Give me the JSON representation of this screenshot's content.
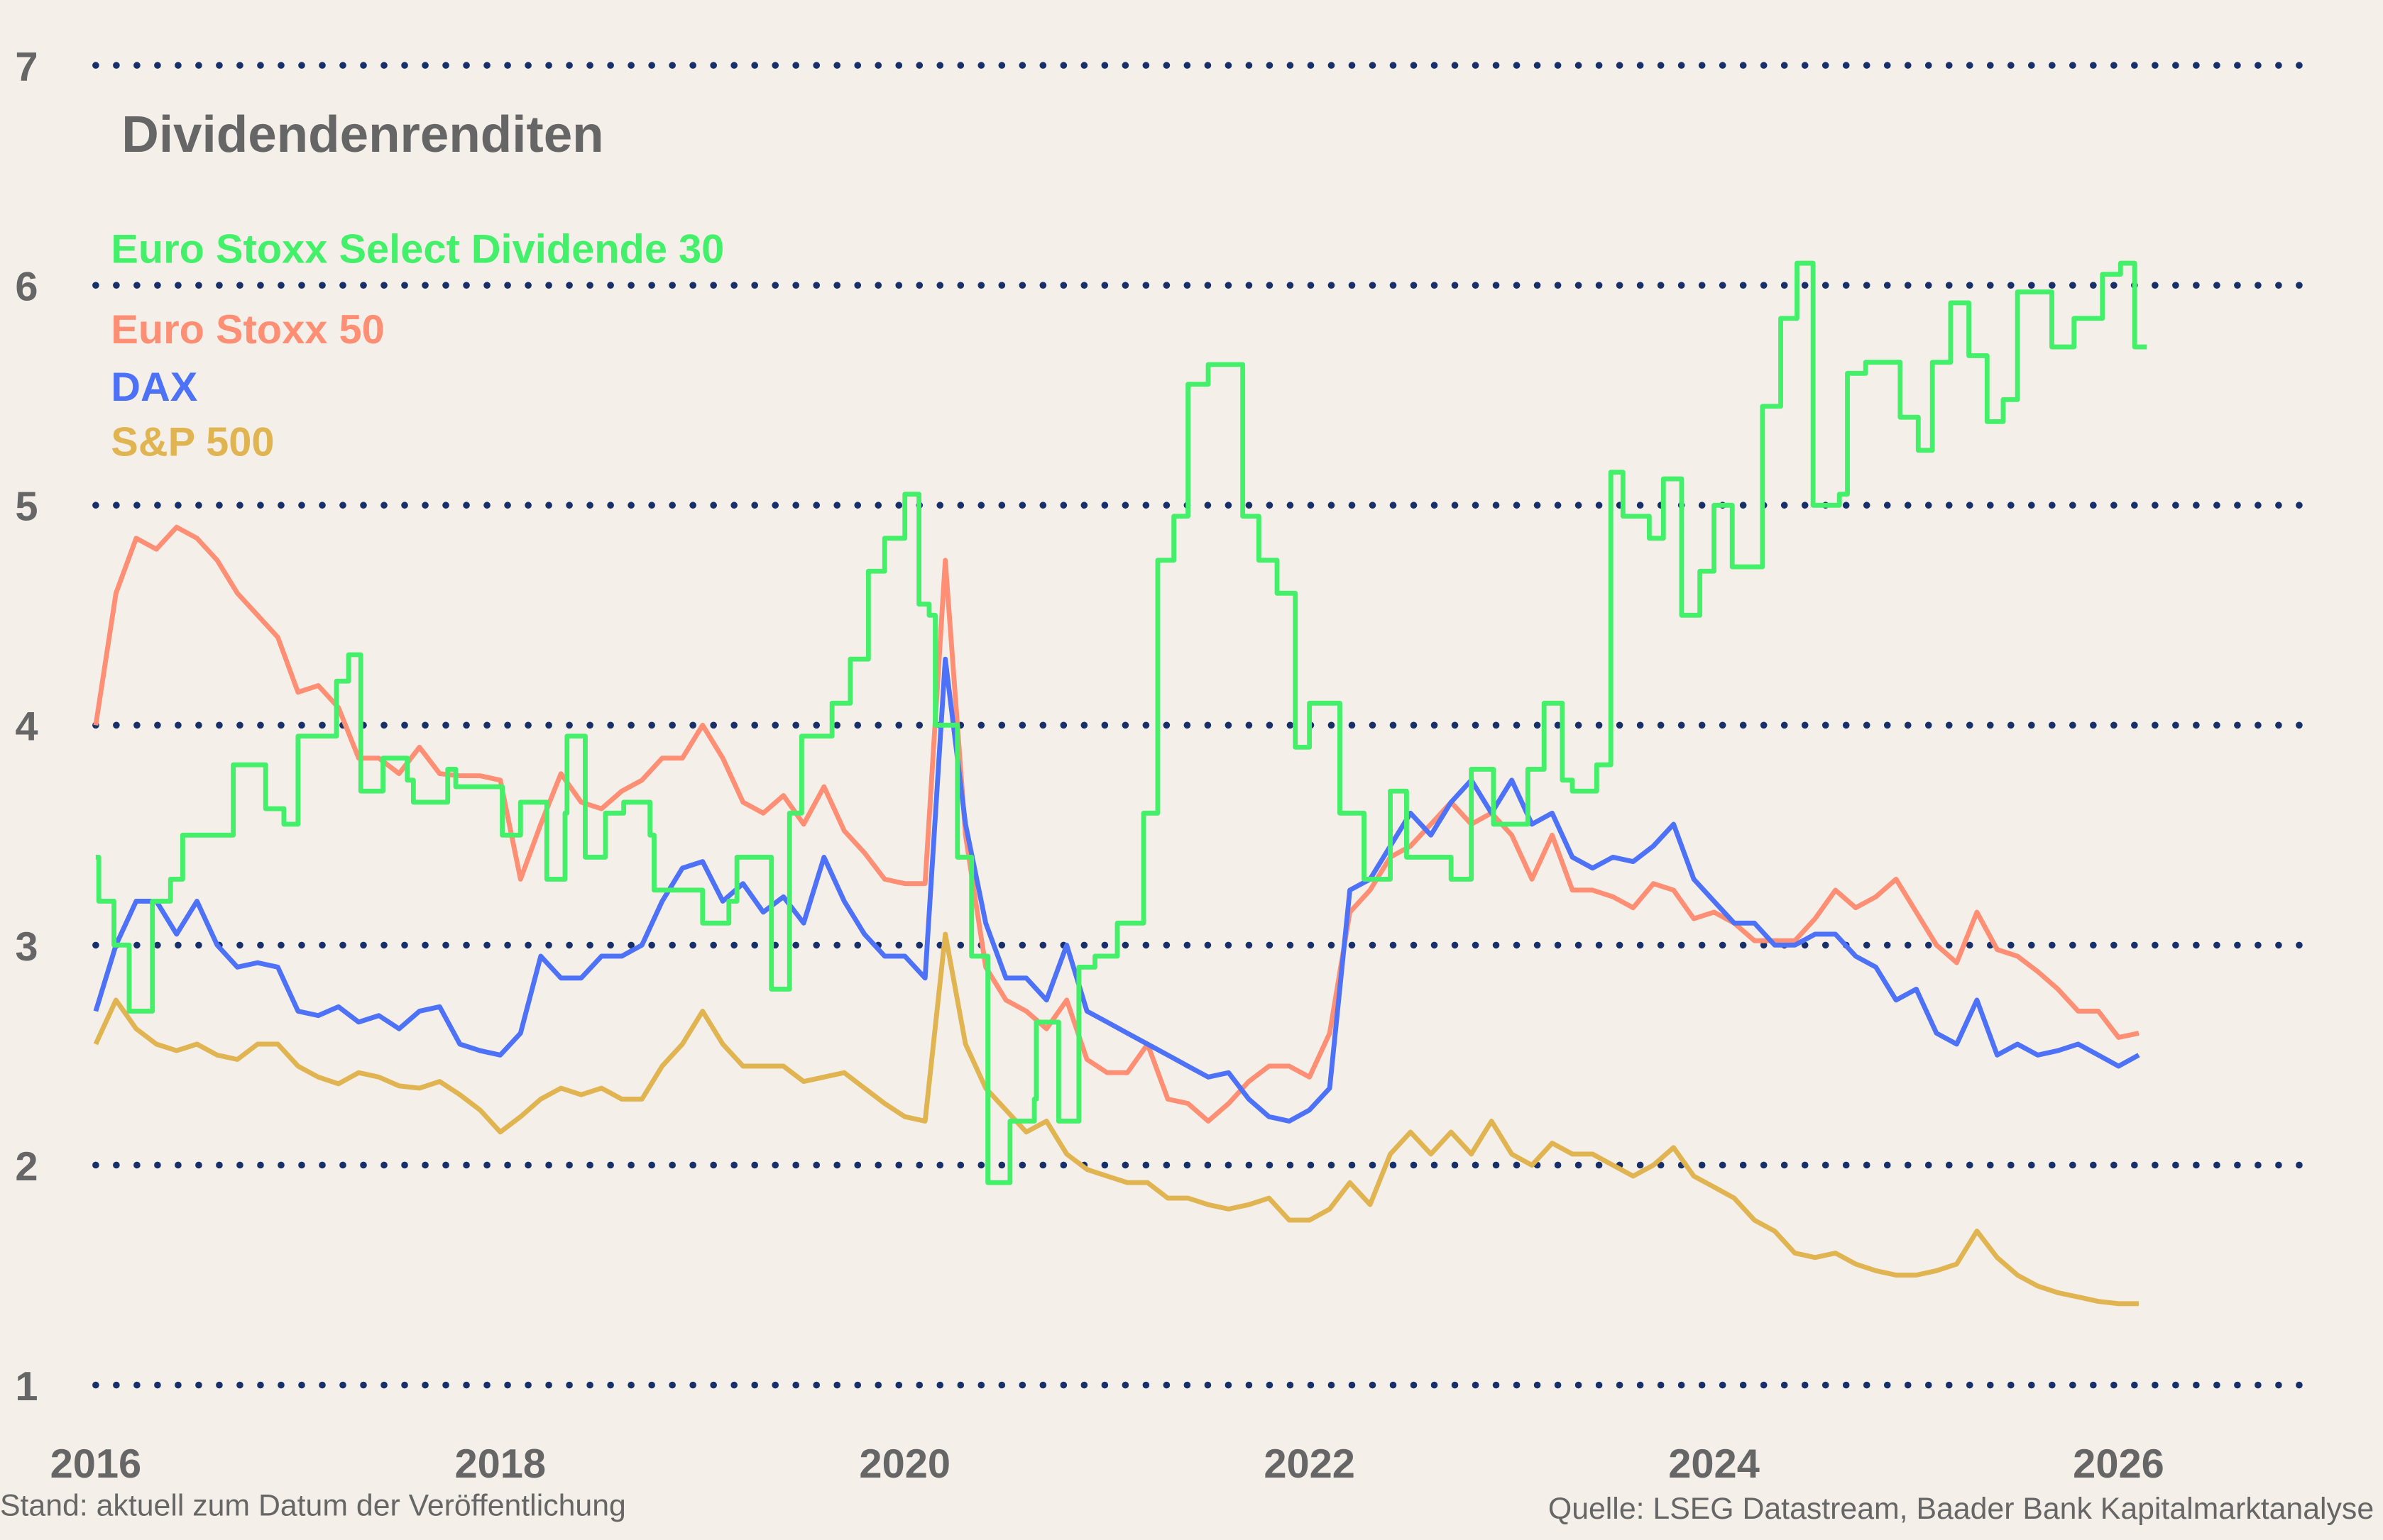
{
  "chart_data": {
    "type": "line",
    "title": "Dividendenrenditen",
    "xlabel": "",
    "ylabel": "",
    "xlim": [
      2016,
      2027.1
    ],
    "ylim": [
      1,
      7
    ],
    "x_ticks": [
      "2016",
      "2018",
      "2020",
      "2022",
      "2024",
      "2026"
    ],
    "y_ticks": [
      "1",
      "2",
      "3",
      "4",
      "5",
      "6",
      "7"
    ],
    "grid": "horizontal dotted",
    "legend_placement": "top-left",
    "x": [
      2016.0,
      2016.1,
      2016.2,
      2016.3,
      2016.4,
      2016.5,
      2016.6,
      2016.7,
      2016.8,
      2016.9,
      2017.0,
      2017.1,
      2017.2,
      2017.3,
      2017.4,
      2017.5,
      2017.6,
      2017.7,
      2017.8,
      2017.9,
      2018.0,
      2018.1,
      2018.2,
      2018.3,
      2018.4,
      2018.5,
      2018.6,
      2018.7,
      2018.8,
      2018.9,
      2019.0,
      2019.1,
      2019.2,
      2019.3,
      2019.4,
      2019.5,
      2019.6,
      2019.7,
      2019.8,
      2019.9,
      2020.0,
      2020.1,
      2020.2,
      2020.3,
      2020.4,
      2020.5,
      2020.6,
      2020.7,
      2020.8,
      2020.9,
      2021.0,
      2021.1,
      2021.2,
      2021.3,
      2021.4,
      2021.5,
      2021.6,
      2021.7,
      2021.8,
      2021.9,
      2022.0,
      2022.1,
      2022.2,
      2022.3,
      2022.4,
      2022.5,
      2022.6,
      2022.7,
      2022.8,
      2022.9,
      2023.0,
      2023.1,
      2023.2,
      2023.3,
      2023.4,
      2023.5,
      2023.6,
      2023.7,
      2023.8,
      2023.9,
      2024.0,
      2024.1,
      2024.2,
      2024.3,
      2024.4,
      2024.5,
      2024.6,
      2024.7,
      2024.8,
      2024.9,
      2025.0,
      2025.1,
      2025.2,
      2025.3,
      2025.4,
      2025.5,
      2025.6,
      2025.7,
      2025.8,
      2025.9,
      2026.0,
      2026.1
    ],
    "series": [
      {
        "name": "Euro Stoxx Select Dividende 30",
        "color": "#44f06a",
        "style": "step",
        "steps": [
          [
            2016.0,
            3.4
          ],
          [
            2016.015,
            3.2
          ],
          [
            2016.09,
            3.0
          ],
          [
            2016.165,
            2.7
          ],
          [
            2016.28,
            3.2
          ],
          [
            2016.37,
            3.3
          ],
          [
            2016.43,
            3.5
          ],
          [
            2016.68,
            3.82
          ],
          [
            2016.84,
            3.62
          ],
          [
            2016.93,
            3.55
          ],
          [
            2017.0,
            3.95
          ],
          [
            2017.19,
            4.2
          ],
          [
            2017.25,
            4.32
          ],
          [
            2017.31,
            3.7
          ],
          [
            2017.42,
            3.85
          ],
          [
            2017.54,
            3.75
          ],
          [
            2017.57,
            3.65
          ],
          [
            2017.74,
            3.8
          ],
          [
            2017.78,
            3.72
          ],
          [
            2018.01,
            3.5
          ],
          [
            2018.1,
            3.65
          ],
          [
            2018.23,
            3.3
          ],
          [
            2018.32,
            3.6
          ],
          [
            2018.33,
            3.95
          ],
          [
            2018.42,
            3.4
          ],
          [
            2018.52,
            3.6
          ],
          [
            2018.61,
            3.65
          ],
          [
            2018.74,
            3.5
          ],
          [
            2018.76,
            3.25
          ],
          [
            2019.0,
            3.1
          ],
          [
            2019.13,
            3.2
          ],
          [
            2019.17,
            3.4
          ],
          [
            2019.34,
            2.8
          ],
          [
            2019.43,
            3.6
          ],
          [
            2019.49,
            3.95
          ],
          [
            2019.64,
            4.1
          ],
          [
            2019.73,
            4.3
          ],
          [
            2019.82,
            4.7
          ],
          [
            2019.9,
            4.85
          ],
          [
            2020.0,
            5.05
          ],
          [
            2020.07,
            4.55
          ],
          [
            2020.12,
            4.5
          ],
          [
            2020.15,
            4.0
          ],
          [
            2020.26,
            3.4
          ],
          [
            2020.33,
            2.95
          ],
          [
            2020.41,
            1.92
          ],
          [
            2020.52,
            2.2
          ],
          [
            2020.64,
            2.3
          ],
          [
            2020.65,
            2.65
          ],
          [
            2020.76,
            2.2
          ],
          [
            2020.86,
            2.9
          ],
          [
            2020.94,
            2.95
          ],
          [
            2021.05,
            3.1
          ],
          [
            2021.18,
            3.6
          ],
          [
            2021.25,
            4.75
          ],
          [
            2021.33,
            4.95
          ],
          [
            2021.4,
            5.55
          ],
          [
            2021.5,
            5.64
          ],
          [
            2021.67,
            4.95
          ],
          [
            2021.75,
            4.75
          ],
          [
            2021.84,
            4.6
          ],
          [
            2021.93,
            3.9
          ],
          [
            2022.0,
            4.1
          ],
          [
            2022.15,
            3.6
          ],
          [
            2022.27,
            3.3
          ],
          [
            2022.4,
            3.7
          ],
          [
            2022.48,
            3.4
          ],
          [
            2022.7,
            3.3
          ],
          [
            2022.8,
            3.8
          ],
          [
            2022.91,
            3.55
          ],
          [
            2023.08,
            3.8
          ],
          [
            2023.16,
            4.1
          ],
          [
            2023.25,
            3.75
          ],
          [
            2023.3,
            3.7
          ],
          [
            2023.42,
            3.82
          ],
          [
            2023.49,
            5.15
          ],
          [
            2023.55,
            4.95
          ],
          [
            2023.68,
            4.85
          ],
          [
            2023.75,
            5.12
          ],
          [
            2023.84,
            4.5
          ],
          [
            2023.93,
            4.7
          ],
          [
            2024.0,
            5.0
          ],
          [
            2024.09,
            4.72
          ],
          [
            2024.24,
            5.45
          ],
          [
            2024.33,
            5.85
          ],
          [
            2024.41,
            6.1
          ],
          [
            2024.49,
            5.0
          ],
          [
            2024.62,
            5.05
          ],
          [
            2024.66,
            5.6
          ],
          [
            2024.75,
            5.65
          ],
          [
            2024.92,
            5.4
          ],
          [
            2025.01,
            5.25
          ],
          [
            2025.08,
            5.65
          ],
          [
            2025.17,
            5.92
          ],
          [
            2025.26,
            5.68
          ],
          [
            2025.35,
            5.38
          ],
          [
            2025.43,
            5.48
          ],
          [
            2025.5,
            5.97
          ],
          [
            2025.67,
            5.72
          ],
          [
            2025.78,
            5.85
          ],
          [
            2025.92,
            6.05
          ],
          [
            2026.01,
            6.1
          ],
          [
            2026.08,
            5.72
          ],
          [
            2026.14,
            5.72
          ]
        ]
      },
      {
        "name": "Euro Stoxx 50",
        "color": "#fe8f74",
        "values": [
          4.0,
          4.6,
          4.85,
          4.8,
          4.9,
          4.85,
          4.75,
          4.6,
          4.5,
          4.4,
          4.15,
          4.18,
          4.08,
          3.85,
          3.85,
          3.78,
          3.9,
          3.78,
          3.77,
          3.77,
          3.75,
          3.3,
          3.55,
          3.78,
          3.65,
          3.62,
          3.7,
          3.75,
          3.85,
          3.85,
          4.0,
          3.85,
          3.65,
          3.6,
          3.68,
          3.55,
          3.72,
          3.52,
          3.42,
          3.3,
          3.28,
          3.28,
          4.75,
          3.5,
          2.9,
          2.75,
          2.7,
          2.62,
          2.75,
          2.48,
          2.42,
          2.42,
          2.55,
          2.3,
          2.28,
          2.2,
          2.28,
          2.38,
          2.45,
          2.45,
          2.4,
          2.6,
          3.15,
          3.25,
          3.4,
          3.45,
          3.55,
          3.65,
          3.55,
          3.6,
          3.5,
          3.3,
          3.5,
          3.25,
          3.25,
          3.22,
          3.17,
          3.28,
          3.25,
          3.12,
          3.15,
          3.1,
          3.02,
          3.02,
          3.02,
          3.12,
          3.25,
          3.17,
          3.22,
          3.3,
          3.15,
          3.0,
          2.92,
          3.15,
          2.98,
          2.95,
          2.88,
          2.8,
          2.7,
          2.7,
          2.58,
          2.6
        ]
      },
      {
        "name": "DAX",
        "color": "#4d72f7",
        "values": [
          2.7,
          3.0,
          3.2,
          3.2,
          3.05,
          3.2,
          3.0,
          2.9,
          2.92,
          2.9,
          2.7,
          2.68,
          2.72,
          2.65,
          2.68,
          2.62,
          2.7,
          2.72,
          2.55,
          2.52,
          2.5,
          2.6,
          2.95,
          2.85,
          2.85,
          2.95,
          2.95,
          3.0,
          3.2,
          3.35,
          3.38,
          3.2,
          3.28,
          3.15,
          3.22,
          3.1,
          3.4,
          3.2,
          3.05,
          2.95,
          2.95,
          2.85,
          4.3,
          3.55,
          3.1,
          2.85,
          2.85,
          2.75,
          3.0,
          2.7,
          2.65,
          2.6,
          2.55,
          2.5,
          2.45,
          2.4,
          2.42,
          2.3,
          2.22,
          2.2,
          2.25,
          2.35,
          3.25,
          3.3,
          3.45,
          3.6,
          3.5,
          3.65,
          3.75,
          3.6,
          3.75,
          3.55,
          3.6,
          3.4,
          3.35,
          3.4,
          3.38,
          3.45,
          3.55,
          3.3,
          3.2,
          3.1,
          3.1,
          3.0,
          3.0,
          3.05,
          3.05,
          2.95,
          2.9,
          2.75,
          2.8,
          2.6,
          2.55,
          2.75,
          2.5,
          2.55,
          2.5,
          2.52,
          2.55,
          2.5,
          2.45,
          2.5
        ]
      },
      {
        "name": "S&P 500",
        "color": "#e0b451",
        "values": [
          2.55,
          2.75,
          2.62,
          2.55,
          2.52,
          2.55,
          2.5,
          2.48,
          2.55,
          2.55,
          2.45,
          2.4,
          2.37,
          2.42,
          2.4,
          2.36,
          2.35,
          2.38,
          2.32,
          2.25,
          2.15,
          2.22,
          2.3,
          2.35,
          2.32,
          2.35,
          2.3,
          2.3,
          2.45,
          2.55,
          2.7,
          2.55,
          2.45,
          2.45,
          2.45,
          2.38,
          2.4,
          2.42,
          2.35,
          2.28,
          2.22,
          2.2,
          3.05,
          2.55,
          2.35,
          2.25,
          2.15,
          2.2,
          2.05,
          1.98,
          1.95,
          1.92,
          1.92,
          1.85,
          1.85,
          1.82,
          1.8,
          1.82,
          1.85,
          1.75,
          1.75,
          1.8,
          1.92,
          1.82,
          2.05,
          2.15,
          2.05,
          2.15,
          2.05,
          2.2,
          2.05,
          2.0,
          2.1,
          2.05,
          2.05,
          2.0,
          1.95,
          2.0,
          2.08,
          1.95,
          1.9,
          1.85,
          1.75,
          1.7,
          1.6,
          1.58,
          1.6,
          1.55,
          1.52,
          1.5,
          1.5,
          1.52,
          1.55,
          1.7,
          1.58,
          1.5,
          1.45,
          1.42,
          1.4,
          1.38,
          1.37,
          1.37
        ]
      }
    ]
  },
  "footer": {
    "left": "Stand: aktuell zum Datum der Veröffentlichung",
    "right": "Quelle: LSEG Datastream, Baader Bank Kapitalmarktanalyse"
  },
  "colors": {
    "background": "#f5efe9",
    "grid": "#17306a",
    "text": "#666666"
  }
}
